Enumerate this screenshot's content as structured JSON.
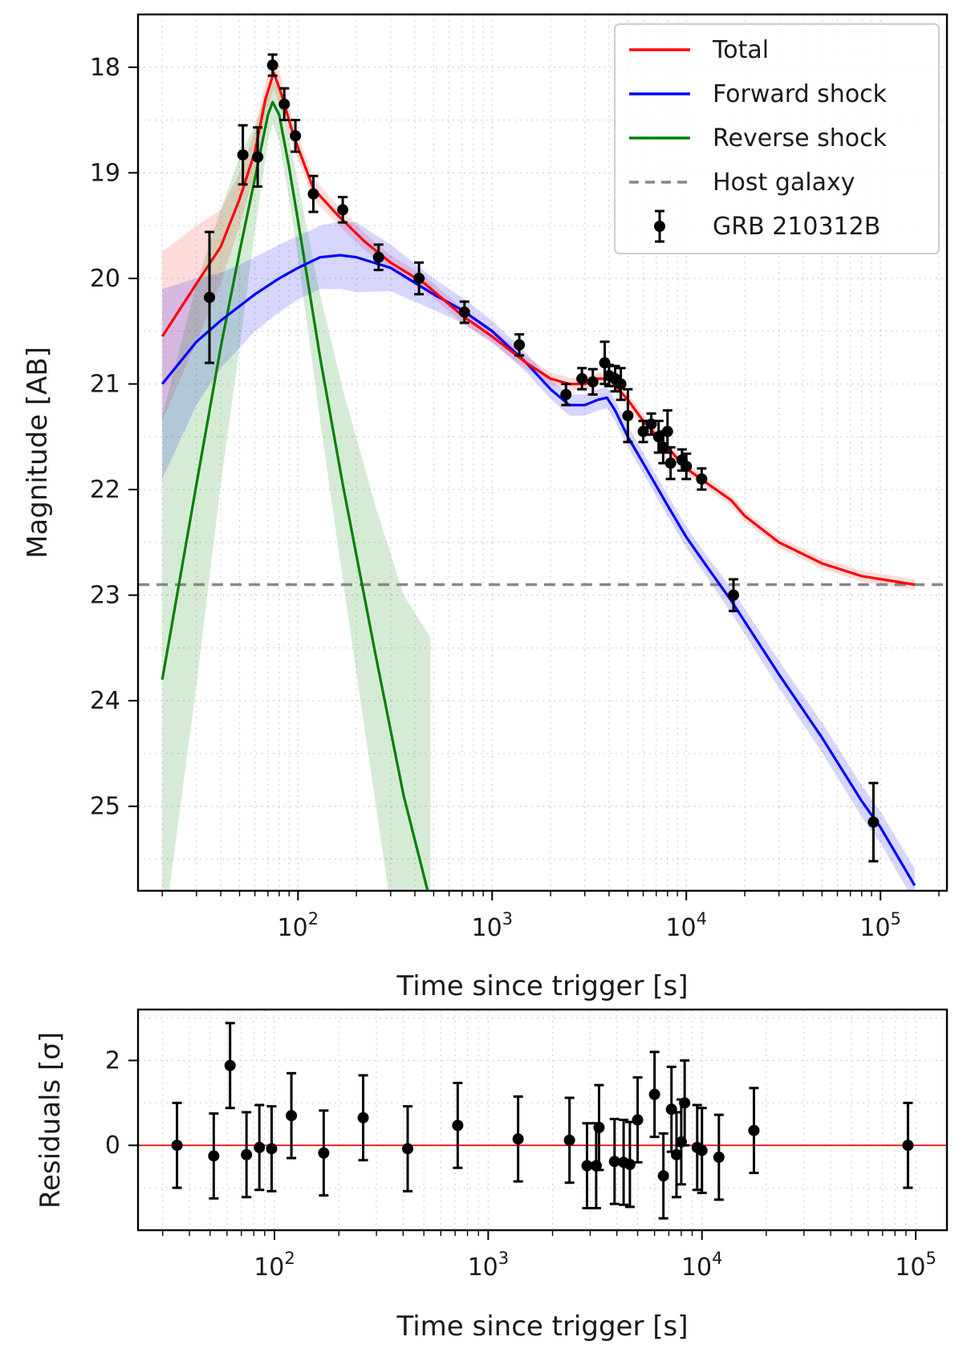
{
  "chart_data": [
    {
      "type": "line",
      "panel": "main",
      "xscale": "log",
      "xlim": [
        15,
        220000
      ],
      "ylim": [
        17.5,
        25.8
      ],
      "y_inverted": true,
      "xlabel": "Time since trigger [s]",
      "ylabel": "Magnitude [AB]",
      "x_ticks": [
        {
          "value": 100,
          "base": "10",
          "exp": "2"
        },
        {
          "value": 1000,
          "base": "10",
          "exp": "3"
        },
        {
          "value": 10000,
          "base": "10",
          "exp": "4"
        },
        {
          "value": 100000,
          "base": "10",
          "exp": "5"
        }
      ],
      "y_ticks": [
        "18",
        "19",
        "20",
        "21",
        "22",
        "23",
        "24",
        "25"
      ],
      "grid": true,
      "legend_position": "top-right",
      "legend": [
        {
          "label": "Total",
          "color": "#ff0000",
          "style": "solid"
        },
        {
          "label": "Forward shock",
          "color": "#0000ff",
          "style": "solid"
        },
        {
          "label": "Reverse shock",
          "color": "#008000",
          "style": "solid"
        },
        {
          "label": "Host galaxy",
          "color": "#888888",
          "style": "dashed"
        },
        {
          "label": "GRB 210312B",
          "color": "#000000",
          "style": "errorbar"
        }
      ],
      "host_galaxy_mag": 22.9,
      "series": [
        {
          "name": "Total",
          "color": "#ff0000",
          "band_color": "#ff0000",
          "x": [
            20,
            30,
            40,
            50,
            60,
            68,
            75,
            82,
            95,
            120,
            160,
            220,
            300,
            450,
            700,
            1000,
            1500,
            2000,
            2500,
            3000,
            3500,
            4000,
            5000,
            6000,
            8000,
            10000,
            13000,
            17000,
            20000,
            30000,
            50000,
            80000,
            150000
          ],
          "y": [
            20.55,
            20.05,
            19.7,
            19.25,
            18.8,
            18.3,
            18.05,
            18.25,
            18.65,
            19.15,
            19.4,
            19.65,
            19.85,
            20.05,
            20.35,
            20.55,
            20.8,
            20.95,
            21.0,
            21.0,
            20.95,
            20.95,
            21.15,
            21.35,
            21.6,
            21.8,
            21.95,
            22.1,
            22.25,
            22.5,
            22.7,
            22.82,
            22.9
          ],
          "band_width": [
            0.8,
            0.55,
            0.35,
            0.25,
            0.2,
            0.15,
            0.15,
            0.15,
            0.12,
            0.1,
            0.09,
            0.08,
            0.07,
            0.07,
            0.07,
            0.07,
            0.06,
            0.06,
            0.06,
            0.06,
            0.06,
            0.06,
            0.06,
            0.06,
            0.05,
            0.05,
            0.05,
            0.05,
            0.05,
            0.05,
            0.05,
            0.05,
            0.05
          ]
        },
        {
          "name": "Forward shock",
          "color": "#0000ff",
          "band_color": "#0000ff",
          "x": [
            20,
            30,
            40,
            60,
            80,
            100,
            130,
            165,
            200,
            300,
            500,
            700,
            1000,
            1500,
            2000,
            2500,
            3000,
            3500,
            3900,
            4300,
            5000,
            6000,
            8000,
            10000,
            13000,
            17000,
            20000,
            30000,
            50000,
            80000,
            100000,
            150000
          ],
          "y": [
            21.0,
            20.6,
            20.4,
            20.15,
            20.0,
            19.9,
            19.8,
            19.78,
            19.8,
            19.9,
            20.15,
            20.3,
            20.5,
            20.8,
            21.05,
            21.2,
            21.2,
            21.15,
            21.13,
            21.25,
            21.5,
            21.75,
            22.15,
            22.45,
            22.75,
            23.05,
            23.25,
            23.75,
            24.35,
            24.95,
            25.2,
            25.75
          ],
          "band_width": [
            0.9,
            0.6,
            0.45,
            0.35,
            0.32,
            0.3,
            0.3,
            0.32,
            0.33,
            0.22,
            0.15,
            0.12,
            0.1,
            0.09,
            0.09,
            0.1,
            0.1,
            0.1,
            0.1,
            0.1,
            0.1,
            0.1,
            0.1,
            0.1,
            0.1,
            0.12,
            0.12,
            0.13,
            0.14,
            0.15,
            0.15,
            0.16
          ]
        },
        {
          "name": "Reverse shock",
          "color": "#008000",
          "band_color": "#008000",
          "x": [
            20,
            30,
            40,
            50,
            60,
            70,
            74,
            80,
            90,
            100,
            130,
            170,
            250,
            350,
            480
          ],
          "y": [
            23.8,
            21.95,
            20.65,
            19.75,
            19.05,
            18.45,
            18.33,
            18.45,
            18.95,
            19.45,
            20.75,
            21.95,
            23.55,
            24.9,
            25.9
          ],
          "band_width": [
            2.5,
            1.9,
            1.3,
            0.9,
            0.5,
            0.25,
            0.2,
            0.25,
            0.3,
            0.35,
            0.6,
            0.9,
            1.4,
            1.9,
            2.5
          ]
        }
      ],
      "observations": {
        "name": "GRB 210312B",
        "color": "#000000",
        "x": [
          35,
          52,
          62,
          74,
          85,
          97,
          120,
          170,
          260,
          420,
          720,
          1380,
          2400,
          2900,
          3300,
          3800,
          4000,
          4300,
          4600,
          5000,
          6000,
          6600,
          7200,
          7600,
          8000,
          8300,
          9500,
          10000,
          12000,
          17500,
          92000
        ],
        "y": [
          20.18,
          18.83,
          18.85,
          17.98,
          18.35,
          18.65,
          19.2,
          19.35,
          19.8,
          20.0,
          20.32,
          20.63,
          21.1,
          20.95,
          20.98,
          20.8,
          20.92,
          20.95,
          21.0,
          21.3,
          21.45,
          21.38,
          21.5,
          21.6,
          21.45,
          21.75,
          21.72,
          21.78,
          21.9,
          23.0,
          25.15
        ],
        "yerr": [
          0.62,
          0.28,
          0.28,
          0.1,
          0.15,
          0.15,
          0.17,
          0.12,
          0.12,
          0.15,
          0.1,
          0.1,
          0.1,
          0.1,
          0.12,
          0.2,
          0.1,
          0.12,
          0.15,
          0.25,
          0.1,
          0.1,
          0.15,
          0.15,
          0.2,
          0.15,
          0.1,
          0.12,
          0.1,
          0.15,
          0.37
        ]
      }
    },
    {
      "type": "scatter",
      "panel": "residuals",
      "xscale": "log",
      "xlim": [
        23,
        140000
      ],
      "ylim": [
        -2.0,
        3.2
      ],
      "xlabel": "Time since trigger [s]",
      "ylabel": "Residuals [σ]",
      "y_ticks": [
        "0",
        "2"
      ],
      "x_ticks": [
        {
          "value": 100,
          "base": "10",
          "exp": "2"
        },
        {
          "value": 1000,
          "base": "10",
          "exp": "3"
        },
        {
          "value": 10000,
          "base": "10",
          "exp": "4"
        },
        {
          "value": 100000,
          "base": "10",
          "exp": "5"
        }
      ],
      "grid": true,
      "zero_line_color": "#ff0000",
      "x": [
        35,
        52,
        62,
        74,
        85,
        97,
        120,
        170,
        260,
        420,
        720,
        1380,
        2400,
        2900,
        3200,
        3300,
        3900,
        4300,
        4600,
        5000,
        6000,
        6600,
        7200,
        7600,
        8000,
        8300,
        9500,
        10000,
        12000,
        17500,
        92000
      ],
      "y": [
        0.0,
        -0.25,
        1.88,
        -0.22,
        -0.05,
        -0.08,
        0.7,
        -0.18,
        0.65,
        -0.08,
        0.47,
        0.15,
        0.12,
        -0.48,
        -0.48,
        0.42,
        -0.38,
        -0.4,
        -0.45,
        0.6,
        1.2,
        -0.72,
        0.85,
        -0.22,
        0.08,
        1.0,
        -0.05,
        -0.12,
        -0.28,
        0.35,
        0.0
      ],
      "yerr": [
        1,
        1,
        1,
        1,
        1,
        1,
        1,
        1,
        1,
        1,
        1,
        1,
        1,
        1,
        1,
        1,
        1,
        1,
        1,
        1,
        1,
        1,
        1,
        1,
        1,
        1,
        1,
        1,
        1,
        1,
        1
      ]
    }
  ]
}
